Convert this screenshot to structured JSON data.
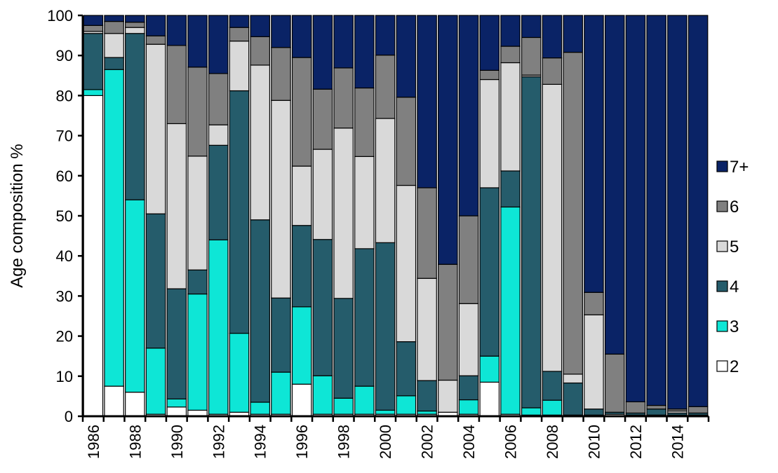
{
  "chart_data": {
    "type": "bar",
    "stacked": true,
    "ylabel": "Age composition %",
    "xlabel": "",
    "ylim": [
      0,
      100
    ],
    "yticks": [
      0,
      10,
      20,
      30,
      40,
      50,
      60,
      70,
      80,
      90,
      100
    ],
    "x": [
      1986,
      1987,
      1988,
      1989,
      1990,
      1991,
      1992,
      1993,
      1994,
      1995,
      1996,
      1997,
      1998,
      1999,
      2000,
      2001,
      2002,
      2003,
      2004,
      2005,
      2006,
      2007,
      2008,
      2009,
      2010,
      2011,
      2012,
      2013,
      2014,
      2015
    ],
    "x_tick_labels": [
      "1986",
      "",
      "1988",
      "",
      "1990",
      "",
      "1992",
      "",
      "1994",
      "",
      "1996",
      "",
      "1998",
      "",
      "2000",
      "",
      "2002",
      "",
      "2004",
      "",
      "2006",
      "",
      "2008",
      "",
      "2010",
      "",
      "2012",
      "",
      "2014",
      ""
    ],
    "legend_position": "right",
    "series": [
      {
        "name": "2",
        "color": "#ffffff",
        "values": [
          80,
          7.5,
          6,
          0.5,
          2.3,
          1.5,
          0.5,
          1,
          0.5,
          0.5,
          8,
          0.5,
          0.5,
          0.5,
          0.5,
          0.5,
          0.5,
          1,
          0.5,
          8.5,
          0.5,
          0.3,
          0.3,
          0.3,
          0.3,
          0.5,
          0.3,
          0.3,
          0.3,
          0.3
        ]
      },
      {
        "name": "3",
        "color": "#0ee6d6",
        "values": [
          1.5,
          79,
          48,
          16.5,
          2,
          29,
          43.5,
          19.7,
          3,
          10.5,
          19.3,
          9.6,
          4,
          7,
          1,
          4.6,
          0.8,
          0,
          3.6,
          6.5,
          51.7,
          1.8,
          3.7,
          0,
          0,
          0,
          0,
          0,
          0,
          0
        ]
      },
      {
        "name": "4",
        "color": "#255c6b",
        "values": [
          14,
          3,
          41.5,
          33.5,
          27.5,
          6,
          23.6,
          60.5,
          45.5,
          18.5,
          20.3,
          34,
          24.9,
          34.3,
          41.8,
          13.5,
          7.6,
          0,
          6,
          42,
          9,
          82.6,
          7.2,
          8,
          1.5,
          0.5,
          0.5,
          1.5,
          0.5,
          0.5
        ]
      },
      {
        "name": "5",
        "color": "#d9d9d9",
        "values": [
          0.5,
          6,
          1.5,
          42.3,
          41.2,
          28.4,
          5.1,
          12.4,
          38.6,
          49.3,
          14.8,
          22.5,
          42.5,
          23,
          31,
          39,
          25.5,
          8,
          18,
          27,
          27,
          0.4,
          71.6,
          2.2,
          23.5,
          0,
          0,
          0,
          0.5,
          0
        ]
      },
      {
        "name": "6",
        "color": "#808080",
        "values": [
          1.5,
          3,
          1.3,
          2.1,
          19.5,
          22.2,
          12.8,
          3.4,
          7.1,
          13.2,
          27.1,
          15,
          15,
          17.1,
          15.8,
          22,
          22.6,
          28.9,
          21.9,
          2.3,
          4.1,
          9.4,
          6.6,
          80.3,
          5.6,
          14.5,
          2.8,
          0.9,
          0.5,
          1.6
        ]
      },
      {
        "name": "7+",
        "color": "#0a2366",
        "values": [
          2.5,
          1.5,
          1.7,
          5.1,
          7.5,
          12.9,
          14.5,
          3.0,
          5.3,
          8.0,
          10.5,
          18.4,
          13.1,
          18.1,
          9.9,
          20.4,
          43.0,
          62.1,
          50.0,
          13.7,
          7.7,
          5.5,
          10.6,
          9.2,
          69.1,
          84.5,
          96.4,
          97.3,
          98.2,
          97.6
        ]
      }
    ]
  }
}
